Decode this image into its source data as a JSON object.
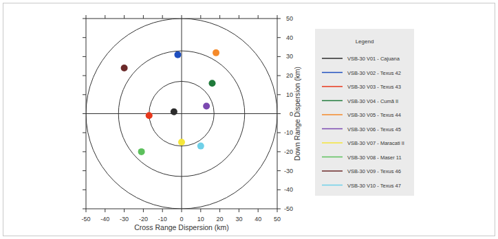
{
  "chart_data": {
    "type": "scatter",
    "x_label": "Cross Range Dispersion (km)",
    "y_label": "Down Range Dispersion (km)",
    "xlim": [
      -50,
      50
    ],
    "ylim": [
      -50,
      50
    ],
    "xticks": [
      -50,
      -40,
      -30,
      -20,
      -10,
      0,
      10,
      20,
      30,
      40,
      50
    ],
    "yticks": [
      -50,
      -40,
      -30,
      -20,
      -10,
      0,
      10,
      20,
      30,
      40,
      50
    ],
    "grid": false,
    "legend": "right",
    "legend_title": "Legend",
    "marker": "circle",
    "rings": [
      17,
      33,
      50
    ],
    "series": [
      {
        "name": "VSB-30 V01 - Cajuana",
        "color": "#2b2b2b",
        "x": [
          -4
        ],
        "values": [
          1
        ]
      },
      {
        "name": "VSB-30 V02 - Texus 42",
        "color": "#1f4fbf",
        "x": [
          -2
        ],
        "values": [
          31
        ]
      },
      {
        "name": "VSB-30 V03 - Texus 43",
        "color": "#e8381c",
        "x": [
          -17
        ],
        "values": [
          -1
        ]
      },
      {
        "name": "VSB-30 V04 - Cumã II",
        "color": "#1f7a3a",
        "x": [
          16
        ],
        "values": [
          16
        ]
      },
      {
        "name": "VSB-30 V05 - Texus 44",
        "color": "#f58a2a",
        "x": [
          18
        ],
        "values": [
          32
        ]
      },
      {
        "name": "VSB-30 V06 - Texus 45",
        "color": "#7b49b0",
        "x": [
          13
        ],
        "values": [
          4
        ]
      },
      {
        "name": "VSB-30 V07 - Maracati II",
        "color": "#f5e63a",
        "x": [
          0
        ],
        "values": [
          -15
        ]
      },
      {
        "name": "VSB-30 V08 - Maser 11",
        "color": "#5cc05c",
        "x": [
          -21
        ],
        "values": [
          -20
        ]
      },
      {
        "name": "VSB-30 V09 - Texus 46",
        "color": "#6b2a2a",
        "x": [
          -30
        ],
        "values": [
          24
        ]
      },
      {
        "name": "VSB-30 V10 - Texus 47",
        "color": "#6fd0e8",
        "x": [
          10
        ],
        "values": [
          -17
        ]
      }
    ]
  }
}
